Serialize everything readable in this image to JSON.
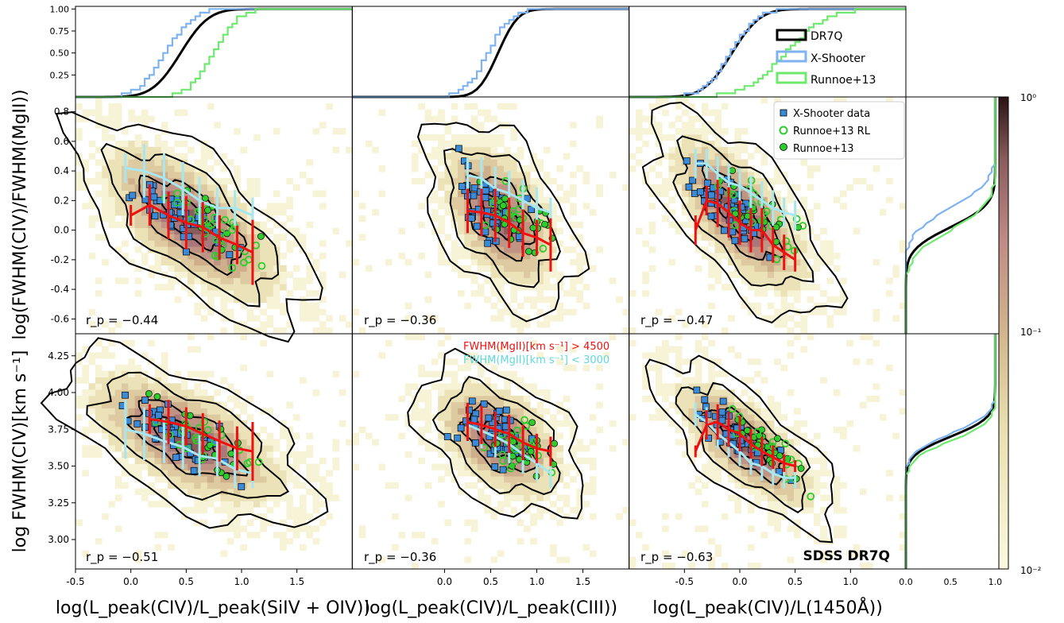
{
  "figure": {
    "xlabels": [
      "log(L_peak(CIV)/L_peak(SiIV + OIV))",
      "log(L_peak(CIV)/L_peak(CIII))",
      "log(L_peak(CIV)/L(1450Å))"
    ],
    "ylabel_top": "log(FWHM(CIV)/FWHM(MgII))",
    "ylabel_bottom": "log FWHM(CIV)[km s⁻¹]",
    "tag": "SDSS DR7Q",
    "legend_top": [
      "DR7Q",
      "X-Shooter",
      "Runnoe+13"
    ],
    "legend_scatter": [
      "X-Shooter data",
      "Runnoe+13 RL",
      "Runnoe+13"
    ],
    "annotation_red": "FWHM(MgII)[km s⁻¹] > 4500",
    "annotation_cyan": "FWHM(MgII)[km s⁻¹] < 3000",
    "rp_top": [
      "r_p = −0.44",
      "r_p = −0.36",
      "r_p = −0.47"
    ],
    "rp_bottom": [
      "r_p = −0.51",
      "r_p = −0.36",
      "r_p = −0.63"
    ],
    "colorbar_ticks": [
      "10⁰",
      "10⁻¹",
      "10⁻²"
    ],
    "colors": {
      "dr7q": "#000000",
      "xshooter": "#7fb2f0",
      "runnoe": "#6ee96e",
      "red": "#ee1111",
      "cyan": "#a8e6f0",
      "square": "#3a8ad8",
      "green": "#2ecc2e"
    }
  },
  "chart_data": [
    {
      "type": "line",
      "panel": "cdf-col1",
      "x_ticks": [
        "-0.5",
        "0.0",
        "0.5",
        "1.0",
        "1.5"
      ],
      "y_ticks": [
        "0.25",
        "0.50",
        "0.75",
        "1.00"
      ],
      "xlim": [
        -0.5,
        2.0
      ],
      "ylim": [
        0,
        1.03
      ],
      "series": [
        {
          "name": "DR7Q",
          "mu": 0.45,
          "s": 0.2
        },
        {
          "name": "X-Shooter",
          "mu": 0.3,
          "s": 0.2
        },
        {
          "name": "Runnoe+13",
          "mu": 0.73,
          "s": 0.18
        }
      ]
    },
    {
      "type": "line",
      "panel": "cdf-col2",
      "xlim": [
        -1.0,
        2.0
      ],
      "ylim": [
        0,
        1.03
      ],
      "series": [
        {
          "name": "DR7Q",
          "mu": 0.58,
          "s": 0.17
        },
        {
          "name": "X-Shooter",
          "mu": 0.45,
          "s": 0.2
        }
      ]
    },
    {
      "type": "line",
      "panel": "cdf-col3",
      "xlim": [
        -1.0,
        1.5
      ],
      "ylim": [
        0,
        1.03
      ],
      "series": [
        {
          "name": "DR7Q",
          "mu": -0.07,
          "s": 0.2
        },
        {
          "name": "X-Shooter",
          "mu": -0.1,
          "s": 0.2
        },
        {
          "name": "Runnoe+13",
          "mu": 0.4,
          "s": 0.3
        }
      ]
    },
    {
      "type": "scatter",
      "panel": "ratio-col1",
      "xlim": [
        -0.5,
        2.0
      ],
      "ylim": [
        -0.7,
        0.9
      ],
      "y_ticks": [
        "-0.6",
        "-0.4",
        "-0.2",
        "0.0",
        "0.2",
        "0.4",
        "0.6",
        "0.8"
      ],
      "red": {
        "x": [
          0.0,
          0.17,
          0.34,
          0.5,
          0.65,
          0.8,
          0.96,
          1.1
        ],
        "y": [
          0.1,
          0.17,
          0.1,
          0.05,
          0.02,
          -0.05,
          -0.1,
          -0.15
        ],
        "err": [
          0.07,
          0.14,
          0.16,
          0.18,
          0.17,
          0.15,
          0.13,
          0.22
        ]
      },
      "cyan": {
        "x": [
          -0.05,
          0.12,
          0.3,
          0.47,
          0.62,
          0.78,
          0.94,
          1.1
        ],
        "y": [
          0.42,
          0.4,
          0.35,
          0.28,
          0.2,
          0.15,
          0.15,
          0.1
        ],
        "err": [
          0.1,
          0.18,
          0.17,
          0.18,
          0.16,
          0.14,
          0.12,
          0.12
        ]
      }
    },
    {
      "type": "scatter",
      "panel": "ratio-col2",
      "xlim": [
        -1.0,
        2.0
      ],
      "ylim": [
        -0.7,
        0.9
      ],
      "red": {
        "x": [
          0.25,
          0.4,
          0.55,
          0.7,
          0.85,
          1.0,
          1.15
        ],
        "y": [
          0.13,
          0.12,
          0.1,
          0.05,
          -0.02,
          -0.05,
          -0.1
        ],
        "err": [
          0.15,
          0.16,
          0.18,
          0.17,
          0.16,
          0.12,
          0.18
        ]
      },
      "cyan": {
        "x": [
          0.25,
          0.4,
          0.55,
          0.7,
          0.85,
          1.0,
          1.15
        ],
        "y": [
          0.37,
          0.35,
          0.28,
          0.25,
          0.2,
          0.15,
          0.12
        ],
        "err": [
          0.12,
          0.14,
          0.15,
          0.15,
          0.14,
          0.14,
          0.1
        ]
      }
    },
    {
      "type": "scatter",
      "panel": "ratio-col3",
      "xlim": [
        -1.0,
        1.5
      ],
      "ylim": [
        -0.7,
        0.9
      ],
      "red": {
        "x": [
          -0.4,
          -0.3,
          -0.2,
          -0.1,
          0.0,
          0.1,
          0.2,
          0.3,
          0.4,
          0.5
        ],
        "y": [
          0.0,
          0.2,
          0.18,
          0.12,
          0.05,
          0.0,
          0.0,
          -0.1,
          -0.15,
          -0.2
        ],
        "err": [
          0.1,
          0.1,
          0.16,
          0.17,
          0.15,
          0.15,
          0.15,
          0.12,
          0.12,
          0.08
        ]
      },
      "cyan": {
        "x": [
          -0.4,
          -0.3,
          -0.2,
          -0.1,
          0.0,
          0.1,
          0.2,
          0.3,
          0.4,
          0.5
        ],
        "y": [
          0.45,
          0.45,
          0.38,
          0.32,
          0.3,
          0.25,
          0.2,
          0.15,
          0.12,
          0.1
        ],
        "err": [
          0.1,
          0.1,
          0.12,
          0.13,
          0.12,
          0.12,
          0.13,
          0.12,
          0.1,
          0.1
        ]
      }
    },
    {
      "type": "scatter",
      "panel": "fwhm-col1",
      "xlim": [
        -0.5,
        2.0
      ],
      "ylim": [
        2.8,
        4.4
      ],
      "y_ticks": [
        "3.00",
        "3.25",
        "3.50",
        "3.75",
        "4.00",
        "4.25"
      ],
      "red": {
        "x": [
          0.17,
          0.34,
          0.5,
          0.65,
          0.8,
          0.96,
          1.1
        ],
        "y": [
          3.82,
          3.8,
          3.77,
          3.72,
          3.67,
          3.62,
          3.6
        ],
        "err": [
          0.1,
          0.15,
          0.13,
          0.14,
          0.14,
          0.15,
          0.2
        ]
      },
      "cyan": {
        "x": [
          -0.05,
          0.12,
          0.3,
          0.47,
          0.62,
          0.78,
          0.94,
          1.1
        ],
        "y": [
          3.75,
          3.72,
          3.67,
          3.63,
          3.57,
          3.55,
          3.48,
          3.45
        ],
        "err": [
          0.2,
          0.18,
          0.15,
          0.15,
          0.14,
          0.12,
          0.13,
          0.1
        ]
      }
    },
    {
      "type": "scatter",
      "panel": "fwhm-col2",
      "xlim": [
        -1.0,
        2.0
      ],
      "ylim": [
        2.8,
        4.4
      ],
      "red": {
        "x": [
          0.25,
          0.4,
          0.55,
          0.7,
          0.85,
          1.0,
          1.15
        ],
        "y": [
          3.8,
          3.78,
          3.75,
          3.72,
          3.66,
          3.62,
          3.6
        ],
        "err": [
          0.13,
          0.13,
          0.12,
          0.13,
          0.12,
          0.1,
          0.1
        ]
      },
      "cyan": {
        "x": [
          0.25,
          0.4,
          0.55,
          0.7,
          0.85,
          1.0,
          1.15
        ],
        "y": [
          3.78,
          3.74,
          3.7,
          3.65,
          3.58,
          3.52,
          3.45
        ],
        "err": [
          0.12,
          0.12,
          0.14,
          0.13,
          0.13,
          0.12,
          0.1
        ]
      }
    },
    {
      "type": "scatter",
      "panel": "fwhm-col3",
      "xlim": [
        -1.0,
        1.5
      ],
      "ylim": [
        2.8,
        4.4
      ],
      "red": {
        "x": [
          -0.4,
          -0.3,
          -0.2,
          -0.1,
          0.0,
          0.1,
          0.2,
          0.3,
          0.4,
          0.5
        ],
        "y": [
          3.6,
          3.78,
          3.8,
          3.75,
          3.72,
          3.65,
          3.6,
          3.56,
          3.52,
          3.5
        ],
        "err": [
          0.04,
          0.1,
          0.12,
          0.12,
          0.12,
          0.1,
          0.1,
          0.08,
          0.06,
          0.04
        ]
      },
      "cyan": {
        "x": [
          -0.4,
          -0.3,
          -0.2,
          -0.1,
          0.0,
          0.1,
          0.2,
          0.3,
          0.4,
          0.5
        ],
        "y": [
          3.85,
          3.8,
          3.72,
          3.66,
          3.6,
          3.52,
          3.5,
          3.45,
          3.42,
          3.42
        ],
        "err": [
          0.08,
          0.1,
          0.1,
          0.1,
          0.1,
          0.08,
          0.1,
          0.08,
          0.07,
          0.07
        ]
      }
    },
    {
      "type": "line",
      "panel": "side-cdf-ratio",
      "x_ticks": [],
      "xlim": [
        0,
        1.05
      ],
      "ylim": [
        -0.7,
        0.9
      ],
      "series": [
        {
          "name": "DR7Q",
          "mu": 0.02,
          "s": 0.12
        },
        {
          "name": "X-Shooter",
          "mu": 0.15,
          "s": 0.14
        },
        {
          "name": "Runnoe+13",
          "mu": 0.0,
          "s": 0.14
        }
      ]
    },
    {
      "type": "line",
      "panel": "side-cdf-fwhm",
      "x_ticks": [
        "0.0",
        "0.5",
        "1.0"
      ],
      "xlim": [
        0,
        1.05
      ],
      "ylim": [
        2.8,
        4.4
      ],
      "series": [
        {
          "name": "DR7Q",
          "mu": 3.7,
          "s": 0.1
        },
        {
          "name": "X-Shooter",
          "mu": 3.72,
          "s": 0.1
        },
        {
          "name": "Runnoe+13",
          "mu": 3.67,
          "s": 0.1
        }
      ]
    }
  ]
}
